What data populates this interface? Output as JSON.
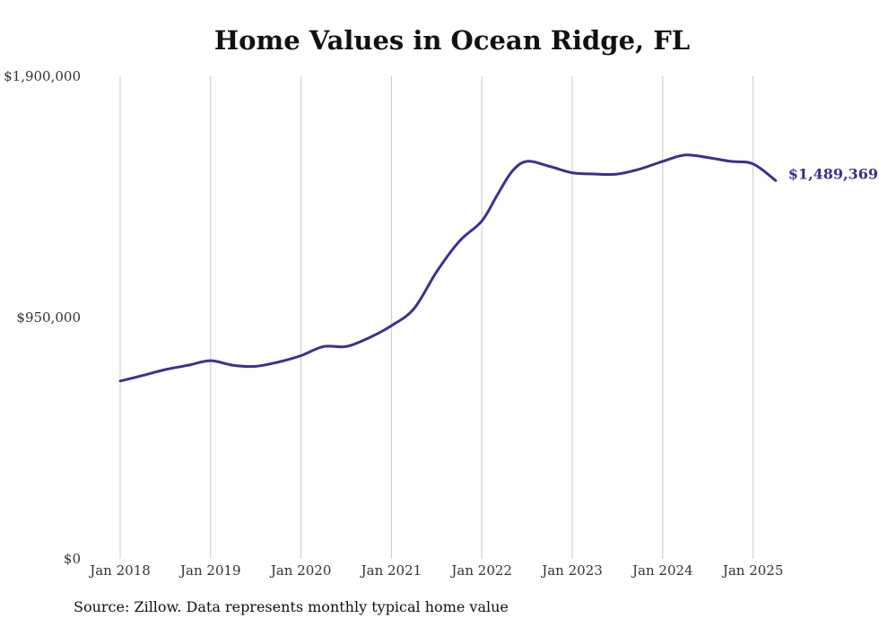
{
  "chart_data": {
    "type": "line",
    "title": "Home Values in Ocean Ridge, FL",
    "xlabel": "",
    "ylabel": "",
    "ylim": [
      0,
      1900000
    ],
    "y_ticks": [
      "$0",
      "$950,000",
      "$1,900,000"
    ],
    "x_tick_labels": [
      "Jan 2018",
      "Jan 2019",
      "Jan 2020",
      "Jan 2021",
      "Jan 2022",
      "Jan 2023",
      "Jan 2024",
      "Jan 2025"
    ],
    "grid": "vertical",
    "line_color": "#3a3191",
    "end_label": "$1,489,369",
    "series": [
      {
        "x": [
          "2018-01",
          "2018-04",
          "2018-07",
          "2018-10",
          "2019-01",
          "2019-04",
          "2019-07",
          "2019-10",
          "2020-01",
          "2020-04",
          "2020-07",
          "2020-10",
          "2021-01",
          "2021-04",
          "2021-07",
          "2021-10",
          "2022-01",
          "2022-03",
          "2022-05",
          "2022-07",
          "2022-10",
          "2023-01",
          "2023-04",
          "2023-07",
          "2023-10",
          "2024-01",
          "2024-04",
          "2024-07",
          "2024-10",
          "2025-01",
          "2025-04"
        ],
        "values": [
          700000,
          722000,
          745000,
          762000,
          780000,
          762000,
          758000,
          775000,
          800000,
          836000,
          836000,
          870000,
          918000,
          985000,
          1130000,
          1250000,
          1330000,
          1430000,
          1525000,
          1565000,
          1545000,
          1520000,
          1515000,
          1515000,
          1535000,
          1565000,
          1590000,
          1580000,
          1565000,
          1555000,
          1489369
        ]
      }
    ],
    "source": "Source: Zillow. Data represents monthly typical home value"
  }
}
